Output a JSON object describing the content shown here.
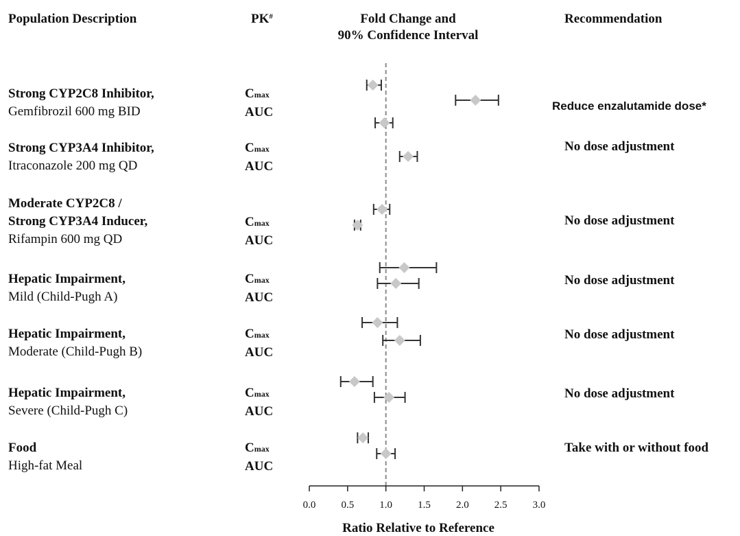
{
  "headers": {
    "population": "Population Description",
    "pk": "PK",
    "pk_mark": "#",
    "fold_line1": "Fold Change and",
    "fold_line2": "90% Confidence Interval",
    "recommendation": "Recommendation"
  },
  "groups": [
    {
      "lines": [
        {
          "text": "Strong CYP2C8 Inhibitor,",
          "bold": true
        },
        {
          "text": "Gemfibrozil 600 mg BID",
          "bold": false
        }
      ],
      "recommendation": "Reduce enzalutamide dose*"
    },
    {
      "lines": [
        {
          "text": "Strong CYP3A4 Inhibitor,",
          "bold": true
        },
        {
          "text": "Itraconazole 200 mg QD",
          "bold": false
        }
      ],
      "recommendation": "No dose adjustment"
    },
    {
      "lines": [
        {
          "text": "Moderate CYP2C8 /",
          "bold": true
        },
        {
          "text": "Strong CYP3A4 Inducer,",
          "bold": true
        },
        {
          "text": "Rifampin 600 mg QD",
          "bold": false
        }
      ],
      "recommendation": "No dose adjustment"
    },
    {
      "lines": [
        {
          "text": "Hepatic Impairment,",
          "bold": true
        },
        {
          "text": "Mild (Child-Pugh A)",
          "bold": false
        }
      ],
      "recommendation": "No dose adjustment"
    },
    {
      "lines": [
        {
          "text": "Hepatic Impairment,",
          "bold": true
        },
        {
          "text": "Moderate (Child-Pugh B)",
          "bold": false
        }
      ],
      "recommendation": "No dose adjustment"
    },
    {
      "lines": [
        {
          "text": "Hepatic Impairment,",
          "bold": true
        },
        {
          "text": "Severe (Child-Pugh C)",
          "bold": false
        }
      ],
      "recommendation": "No dose adjustment"
    },
    {
      "lines": [
        {
          "text": "Food",
          "bold": true
        },
        {
          "text": "High-fat Meal",
          "bold": false
        }
      ],
      "recommendation": "Take with or without food"
    }
  ],
  "pk_labels": {
    "cmax_main": "C",
    "cmax_sub": "max",
    "auc": "AUC"
  },
  "colors": {
    "marker": "#c8c8c8",
    "ci": "#333333",
    "reference_line": "#8a8a8a",
    "axis": "#222222"
  },
  "chart_data": {
    "type": "forest",
    "xlabel": "Ratio Relative to Reference",
    "xlim": [
      0.0,
      3.0
    ],
    "xticks": [
      "0.0",
      "0.5",
      "1.0",
      "1.5",
      "2.0",
      "2.5",
      "3.0"
    ],
    "reference": 1.0,
    "series": [
      {
        "group": 0,
        "pk": "Cmax",
        "estimate": 0.83,
        "lower": 0.75,
        "upper": 0.94
      },
      {
        "group": 0,
        "pk": "AUC",
        "estimate": 2.17,
        "lower": 1.91,
        "upper": 2.47
      },
      {
        "group": 1,
        "pk": "Cmax",
        "estimate": 0.98,
        "lower": 0.86,
        "upper": 1.09
      },
      {
        "group": 1,
        "pk": "AUC",
        "estimate": 1.29,
        "lower": 1.18,
        "upper": 1.41
      },
      {
        "group": 2,
        "pk": "Cmax",
        "estimate": 0.95,
        "lower": 0.84,
        "upper": 1.05
      },
      {
        "group": 2,
        "pk": "AUC",
        "estimate": 0.63,
        "lower": 0.59,
        "upper": 0.67
      },
      {
        "group": 3,
        "pk": "Cmax",
        "estimate": 1.24,
        "lower": 0.92,
        "upper": 1.66
      },
      {
        "group": 3,
        "pk": "AUC",
        "estimate": 1.13,
        "lower": 0.89,
        "upper": 1.43
      },
      {
        "group": 4,
        "pk": "Cmax",
        "estimate": 0.89,
        "lower": 0.69,
        "upper": 1.15
      },
      {
        "group": 4,
        "pk": "AUC",
        "estimate": 1.18,
        "lower": 0.96,
        "upper": 1.45
      },
      {
        "group": 5,
        "pk": "Cmax",
        "estimate": 0.59,
        "lower": 0.41,
        "upper": 0.83
      },
      {
        "group": 5,
        "pk": "AUC",
        "estimate": 1.04,
        "lower": 0.85,
        "upper": 1.25
      },
      {
        "group": 6,
        "pk": "Cmax",
        "estimate": 0.7,
        "lower": 0.63,
        "upper": 0.77
      },
      {
        "group": 6,
        "pk": "AUC",
        "estimate": 1.0,
        "lower": 0.88,
        "upper": 1.12
      }
    ]
  }
}
